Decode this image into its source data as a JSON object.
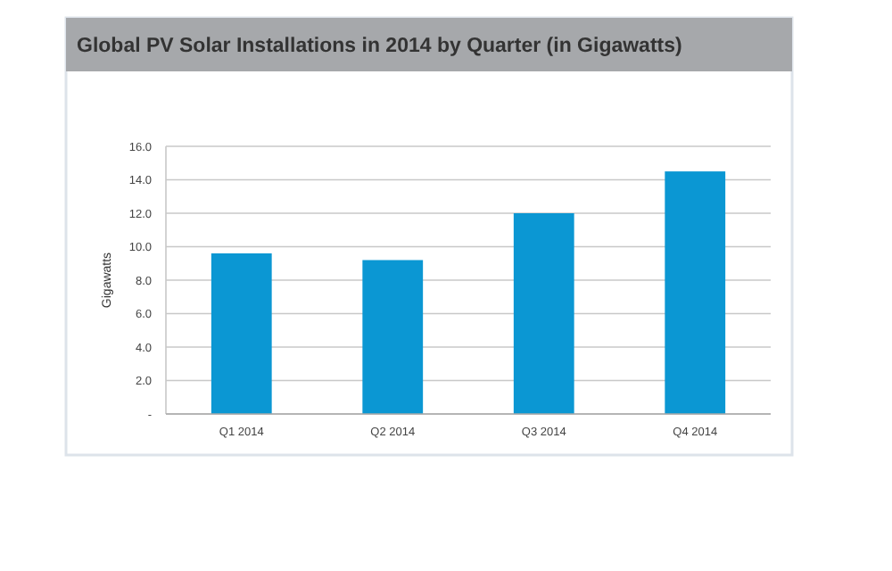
{
  "chart_data": {
    "type": "bar",
    "title": "Global PV Solar Installations in 2014  by Quarter (in Gigawatts)",
    "ylabel": "Gigawatts",
    "categories": [
      "Q1 2014",
      "Q2 2014",
      "Q3 2014",
      "Q4 2014"
    ],
    "values": [
      9.6,
      9.2,
      12.0,
      14.5
    ],
    "color": "#0b97d3",
    "ylim": [
      0,
      16
    ],
    "yticks": [
      {
        "value": 0,
        "label": "-"
      },
      {
        "value": 2,
        "label": "2.0"
      },
      {
        "value": 4,
        "label": "4.0"
      },
      {
        "value": 6,
        "label": "6.0"
      },
      {
        "value": 8,
        "label": "8.0"
      },
      {
        "value": 10,
        "label": "10.0"
      },
      {
        "value": 12,
        "label": "12.0"
      },
      {
        "value": 14,
        "label": "14.0"
      },
      {
        "value": 16,
        "label": "16.0"
      }
    ],
    "grid": "y"
  }
}
